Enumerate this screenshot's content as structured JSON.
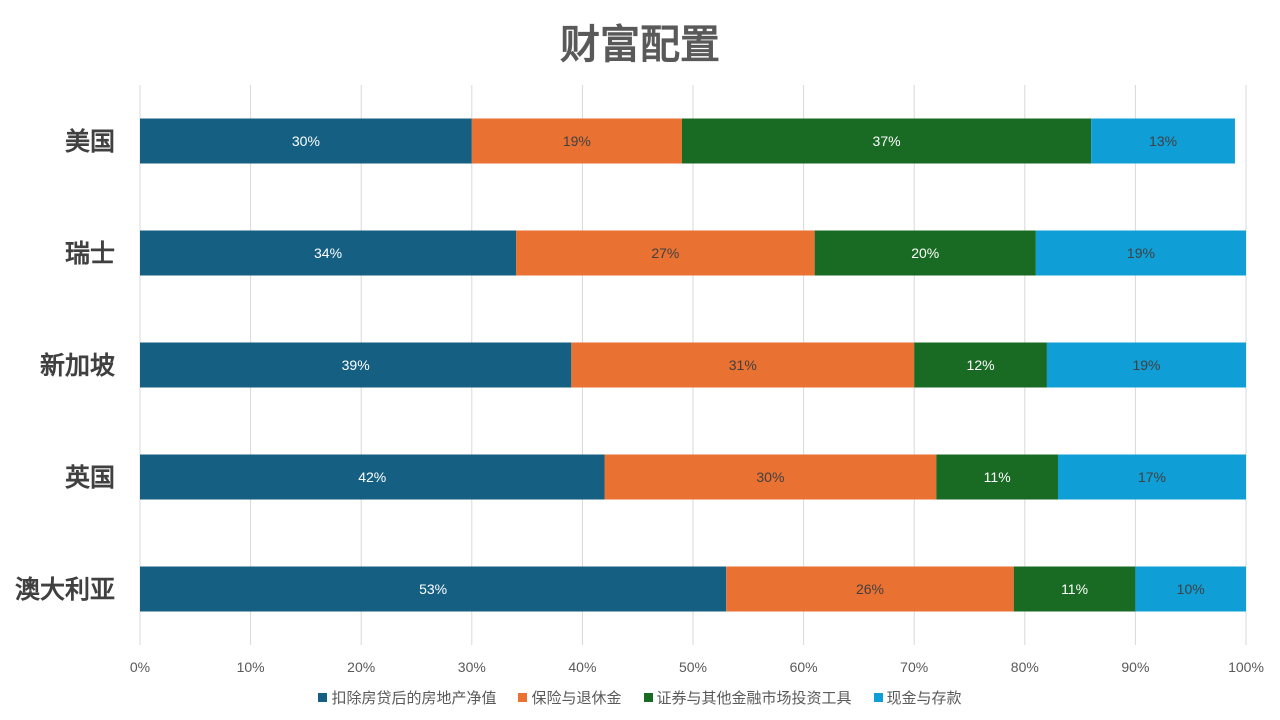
{
  "chart_data": {
    "type": "bar",
    "orientation": "horizontal",
    "stacked": true,
    "title": "财富配置",
    "categories": [
      "美国",
      "瑞士",
      "新加坡",
      "英国",
      "澳大利亚"
    ],
    "series": [
      {
        "name": "扣除房贷后的房地产净值",
        "color": "#156082",
        "label_color": "#ffffff",
        "values": [
          30,
          34,
          39,
          42,
          53
        ]
      },
      {
        "name": "保险与退休金",
        "color": "#E97132",
        "label_color": "#404040",
        "values": [
          19,
          27,
          31,
          30,
          26
        ]
      },
      {
        "name": "证券与其他金融市场投资工具",
        "color": "#196B24",
        "label_color": "#ffffff",
        "values": [
          37,
          20,
          12,
          11,
          11
        ]
      },
      {
        "name": "现金与存款",
        "color": "#0F9ED5",
        "label_color": "#404040",
        "values": [
          13,
          19,
          19,
          17,
          10
        ]
      }
    ],
    "xlim": [
      0,
      100
    ],
    "xticks": [
      "0%",
      "10%",
      "20%",
      "30%",
      "40%",
      "50%",
      "60%",
      "70%",
      "80%",
      "90%",
      "100%"
    ],
    "grid": true,
    "legend": "bottom",
    "value_suffix": "%"
  }
}
